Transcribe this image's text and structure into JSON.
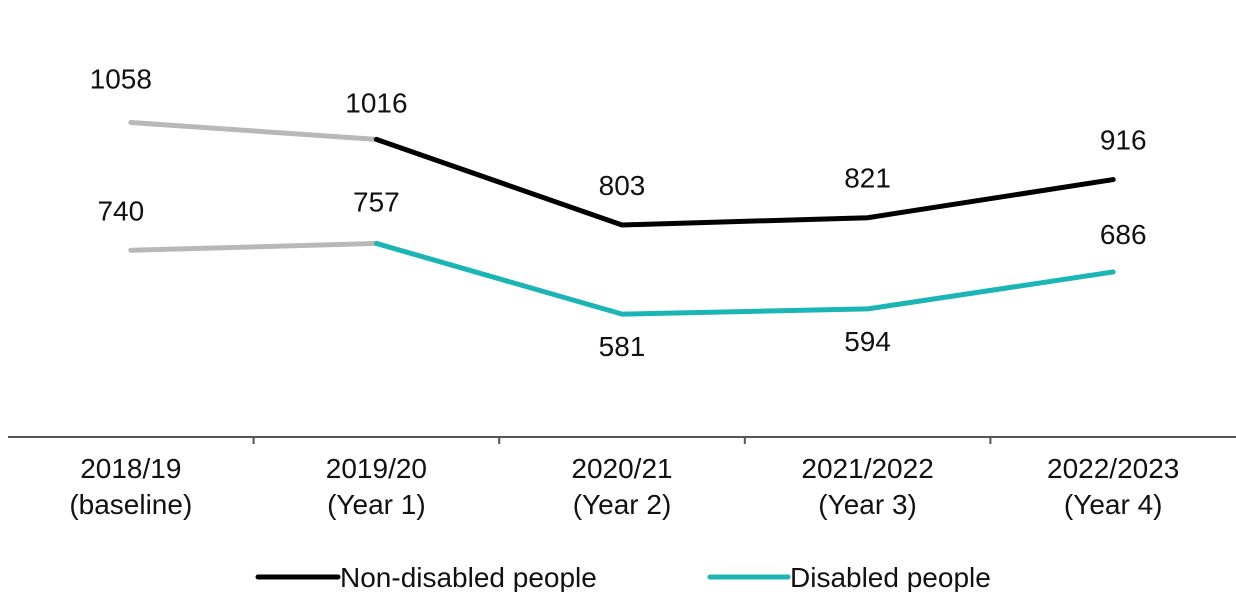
{
  "chart_data": {
    "type": "line",
    "title": "",
    "xlabel": "",
    "ylabel": "",
    "categories": [
      [
        "2018/19",
        "(baseline)"
      ],
      [
        "2019/20",
        "(Year 1)"
      ],
      [
        "2020/21",
        "(Year 2)"
      ],
      [
        "2021/2022",
        "(Year 3)"
      ],
      [
        "2022/2023",
        "(Year 4)"
      ]
    ],
    "baseline_segment_color": "#b8b8b8",
    "series": [
      {
        "name": "Non-disabled people",
        "color": "#000000",
        "values": [
          1058,
          1016,
          803,
          821,
          916
        ]
      },
      {
        "name": "Disabled people",
        "color": "#1bb5b5",
        "values": [
          740,
          757,
          581,
          594,
          686
        ]
      }
    ],
    "ylim": [
      0,
      1200
    ],
    "grid": false,
    "legend": "bottom",
    "axis_color": "#555555"
  }
}
